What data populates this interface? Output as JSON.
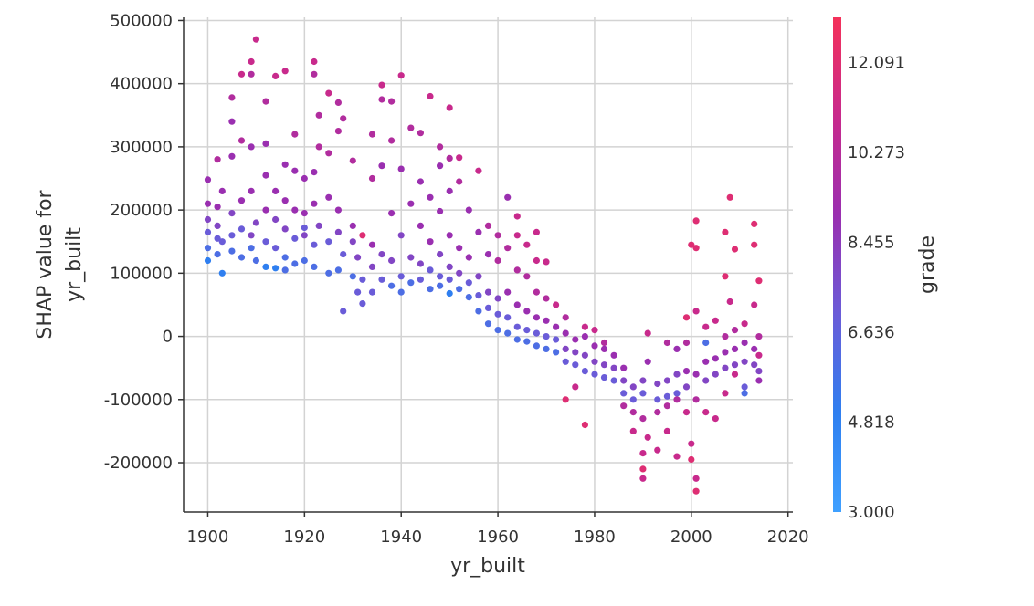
{
  "chart_data": {
    "type": "scatter",
    "title": "",
    "xlabel": "yr_built",
    "ylabel_lines": [
      "SHAP value for",
      "yr_built"
    ],
    "xlim": [
      1895,
      2021
    ],
    "ylim": [
      -278000,
      505000
    ],
    "x_ticks": [
      1900,
      1920,
      1940,
      1960,
      1980,
      2000,
      2020
    ],
    "y_ticks": [
      -200000,
      -100000,
      0,
      100000,
      200000,
      300000,
      400000,
      500000
    ],
    "grid": true,
    "colorbar": {
      "label": "grade",
      "min": 3.0,
      "max": 13.0,
      "tick_values": [
        3.0,
        4.818,
        6.636,
        8.455,
        10.273,
        12.091
      ],
      "tick_labels": [
        "3.000",
        "4.818",
        "6.636",
        "8.455",
        "10.273",
        "12.091"
      ],
      "colors": [
        "#3fa0ff",
        "#2f7ff0",
        "#6a5cd8",
        "#9a2fb0",
        "#c82a8c",
        "#f4315a"
      ]
    },
    "points": [
      [
        1900,
        120000,
        5
      ],
      [
        1900,
        140000,
        6
      ],
      [
        1900,
        165000,
        7
      ],
      [
        1900,
        185000,
        8
      ],
      [
        1900,
        210000,
        9
      ],
      [
        1900,
        248000,
        9
      ],
      [
        1902,
        130000,
        6
      ],
      [
        1902,
        155000,
        7
      ],
      [
        1902,
        175000,
        8
      ],
      [
        1902,
        205000,
        9
      ],
      [
        1902,
        280000,
        10
      ],
      [
        1903,
        100000,
        5
      ],
      [
        1903,
        150000,
        7
      ],
      [
        1903,
        230000,
        9
      ],
      [
        1905,
        135000,
        6
      ],
      [
        1905,
        160000,
        7
      ],
      [
        1905,
        195000,
        8
      ],
      [
        1905,
        285000,
        9
      ],
      [
        1905,
        378000,
        10
      ],
      [
        1905,
        340000,
        9
      ],
      [
        1907,
        125000,
        6
      ],
      [
        1907,
        170000,
        7
      ],
      [
        1907,
        215000,
        9
      ],
      [
        1907,
        310000,
        10
      ],
      [
        1907,
        415000,
        11
      ],
      [
        1909,
        140000,
        6
      ],
      [
        1909,
        160000,
        8
      ],
      [
        1909,
        230000,
        9
      ],
      [
        1909,
        300000,
        9
      ],
      [
        1909,
        435000,
        11
      ],
      [
        1909,
        415000,
        10
      ],
      [
        1910,
        470000,
        11
      ],
      [
        1910,
        180000,
        8
      ],
      [
        1910,
        120000,
        6
      ],
      [
        1912,
        110000,
        5
      ],
      [
        1912,
        150000,
        7
      ],
      [
        1912,
        200000,
        9
      ],
      [
        1912,
        255000,
        9
      ],
      [
        1912,
        372000,
        10
      ],
      [
        1912,
        305000,
        9
      ],
      [
        1914,
        108000,
        5
      ],
      [
        1914,
        140000,
        7
      ],
      [
        1914,
        185000,
        8
      ],
      [
        1914,
        230000,
        9
      ],
      [
        1914,
        412000,
        11
      ],
      [
        1916,
        105000,
        6
      ],
      [
        1916,
        125000,
        6
      ],
      [
        1916,
        170000,
        8
      ],
      [
        1916,
        215000,
        9
      ],
      [
        1916,
        272000,
        9
      ],
      [
        1916,
        420000,
        11
      ],
      [
        1918,
        115000,
        6
      ],
      [
        1918,
        155000,
        7
      ],
      [
        1918,
        200000,
        9
      ],
      [
        1918,
        320000,
        10
      ],
      [
        1918,
        262000,
        9
      ],
      [
        1920,
        120000,
        6
      ],
      [
        1920,
        160000,
        8
      ],
      [
        1920,
        195000,
        9
      ],
      [
        1920,
        250000,
        9
      ],
      [
        1920,
        172000,
        7
      ],
      [
        1922,
        110000,
        6
      ],
      [
        1922,
        145000,
        7
      ],
      [
        1922,
        210000,
        9
      ],
      [
        1922,
        260000,
        9
      ],
      [
        1922,
        435000,
        11
      ],
      [
        1922,
        415000,
        10
      ],
      [
        1923,
        350000,
        10
      ],
      [
        1923,
        300000,
        10
      ],
      [
        1923,
        175000,
        8
      ],
      [
        1925,
        100000,
        6
      ],
      [
        1925,
        150000,
        7
      ],
      [
        1925,
        220000,
        9
      ],
      [
        1925,
        290000,
        10
      ],
      [
        1925,
        385000,
        11
      ],
      [
        1927,
        105000,
        6
      ],
      [
        1927,
        165000,
        8
      ],
      [
        1927,
        200000,
        9
      ],
      [
        1927,
        370000,
        10
      ],
      [
        1927,
        325000,
        10
      ],
      [
        1928,
        40000,
        7
      ],
      [
        1928,
        130000,
        7
      ],
      [
        1928,
        345000,
        10
      ],
      [
        1930,
        95000,
        6
      ],
      [
        1930,
        150000,
        8
      ],
      [
        1930,
        175000,
        9
      ],
      [
        1930,
        278000,
        10
      ],
      [
        1931,
        70000,
        7
      ],
      [
        1931,
        125000,
        8
      ],
      [
        1932,
        52000,
        7
      ],
      [
        1932,
        160000,
        12
      ],
      [
        1932,
        90000,
        7
      ],
      [
        1934,
        70000,
        7
      ],
      [
        1934,
        110000,
        8
      ],
      [
        1934,
        145000,
        9
      ],
      [
        1934,
        250000,
        10
      ],
      [
        1934,
        320000,
        10
      ],
      [
        1936,
        90000,
        7
      ],
      [
        1936,
        130000,
        8
      ],
      [
        1936,
        270000,
        9
      ],
      [
        1936,
        398000,
        11
      ],
      [
        1936,
        375000,
        10
      ],
      [
        1938,
        80000,
        6
      ],
      [
        1938,
        120000,
        8
      ],
      [
        1938,
        195000,
        9
      ],
      [
        1938,
        310000,
        10
      ],
      [
        1938,
        372000,
        10
      ],
      [
        1940,
        413000,
        11
      ],
      [
        1940,
        265000,
        9
      ],
      [
        1940,
        160000,
        8
      ],
      [
        1940,
        95000,
        7
      ],
      [
        1940,
        70000,
        6
      ],
      [
        1942,
        85000,
        6
      ],
      [
        1942,
        125000,
        8
      ],
      [
        1942,
        210000,
        9
      ],
      [
        1942,
        330000,
        10
      ],
      [
        1944,
        90000,
        7
      ],
      [
        1944,
        115000,
        8
      ],
      [
        1944,
        175000,
        9
      ],
      [
        1944,
        245000,
        9
      ],
      [
        1944,
        322000,
        10
      ],
      [
        1946,
        75000,
        6
      ],
      [
        1946,
        105000,
        7
      ],
      [
        1946,
        150000,
        9
      ],
      [
        1946,
        220000,
        9
      ],
      [
        1946,
        380000,
        11
      ],
      [
        1948,
        80000,
        6
      ],
      [
        1948,
        95000,
        7
      ],
      [
        1948,
        130000,
        8
      ],
      [
        1948,
        198000,
        9
      ],
      [
        1948,
        270000,
        9
      ],
      [
        1948,
        300000,
        10
      ],
      [
        1950,
        68000,
        5
      ],
      [
        1950,
        90000,
        7
      ],
      [
        1950,
        110000,
        8
      ],
      [
        1950,
        160000,
        9
      ],
      [
        1950,
        230000,
        9
      ],
      [
        1950,
        282000,
        10
      ],
      [
        1950,
        362000,
        11
      ],
      [
        1952,
        75000,
        6
      ],
      [
        1952,
        100000,
        8
      ],
      [
        1952,
        140000,
        9
      ],
      [
        1952,
        245000,
        10
      ],
      [
        1952,
        283000,
        11
      ],
      [
        1954,
        62000,
        6
      ],
      [
        1954,
        85000,
        7
      ],
      [
        1954,
        125000,
        9
      ],
      [
        1954,
        200000,
        9
      ],
      [
        1956,
        40000,
        6
      ],
      [
        1956,
        65000,
        7
      ],
      [
        1956,
        95000,
        8
      ],
      [
        1956,
        165000,
        9
      ],
      [
        1956,
        262000,
        11
      ],
      [
        1958,
        20000,
        6
      ],
      [
        1958,
        45000,
        7
      ],
      [
        1958,
        70000,
        8
      ],
      [
        1958,
        130000,
        9
      ],
      [
        1958,
        175000,
        10
      ],
      [
        1960,
        10000,
        6
      ],
      [
        1960,
        35000,
        7
      ],
      [
        1960,
        60000,
        8
      ],
      [
        1960,
        120000,
        10
      ],
      [
        1960,
        160000,
        10
      ],
      [
        1962,
        5000,
        6
      ],
      [
        1962,
        30000,
        7
      ],
      [
        1962,
        70000,
        9
      ],
      [
        1962,
        140000,
        10
      ],
      [
        1962,
        220000,
        9
      ],
      [
        1964,
        -5000,
        6
      ],
      [
        1964,
        15000,
        7
      ],
      [
        1964,
        50000,
        9
      ],
      [
        1964,
        105000,
        10
      ],
      [
        1964,
        160000,
        11
      ],
      [
        1964,
        190000,
        11
      ],
      [
        1966,
        -8000,
        6
      ],
      [
        1966,
        10000,
        7
      ],
      [
        1966,
        40000,
        9
      ],
      [
        1966,
        95000,
        10
      ],
      [
        1966,
        145000,
        11
      ],
      [
        1968,
        -15000,
        6
      ],
      [
        1968,
        5000,
        7
      ],
      [
        1968,
        30000,
        9
      ],
      [
        1968,
        70000,
        10
      ],
      [
        1968,
        120000,
        11
      ],
      [
        1968,
        165000,
        11
      ],
      [
        1970,
        -20000,
        6
      ],
      [
        1970,
        0,
        7
      ],
      [
        1970,
        25000,
        9
      ],
      [
        1970,
        60000,
        10
      ],
      [
        1970,
        118000,
        11
      ],
      [
        1972,
        -25000,
        6
      ],
      [
        1972,
        -5000,
        7
      ],
      [
        1972,
        15000,
        9
      ],
      [
        1972,
        50000,
        11
      ],
      [
        1974,
        -40000,
        7
      ],
      [
        1974,
        -20000,
        8
      ],
      [
        1974,
        5000,
        9
      ],
      [
        1974,
        30000,
        10
      ],
      [
        1974,
        -100000,
        12
      ],
      [
        1976,
        -45000,
        7
      ],
      [
        1976,
        -25000,
        8
      ],
      [
        1976,
        -5000,
        9
      ],
      [
        1976,
        -80000,
        11
      ],
      [
        1978,
        -55000,
        7
      ],
      [
        1978,
        -30000,
        8
      ],
      [
        1978,
        0,
        9
      ],
      [
        1978,
        15000,
        11
      ],
      [
        1978,
        -140000,
        12
      ],
      [
        1980,
        -60000,
        7
      ],
      [
        1980,
        -40000,
        8
      ],
      [
        1980,
        -15000,
        9
      ],
      [
        1980,
        10000,
        11
      ],
      [
        1982,
        -65000,
        7
      ],
      [
        1982,
        -45000,
        8
      ],
      [
        1982,
        -20000,
        9
      ],
      [
        1982,
        -10000,
        10
      ],
      [
        1984,
        -70000,
        7
      ],
      [
        1984,
        -50000,
        8
      ],
      [
        1984,
        -30000,
        9
      ],
      [
        1986,
        -90000,
        7
      ],
      [
        1986,
        -70000,
        8
      ],
      [
        1986,
        -50000,
        9
      ],
      [
        1986,
        -110000,
        10
      ],
      [
        1988,
        -100000,
        7
      ],
      [
        1988,
        -80000,
        8
      ],
      [
        1988,
        -120000,
        10
      ],
      [
        1988,
        -150000,
        11
      ],
      [
        1990,
        -90000,
        7
      ],
      [
        1990,
        -70000,
        8
      ],
      [
        1990,
        -130000,
        10
      ],
      [
        1990,
        -210000,
        12
      ],
      [
        1990,
        -225000,
        11
      ],
      [
        1990,
        -185000,
        11
      ],
      [
        1991,
        5000,
        11
      ],
      [
        1991,
        -40000,
        9
      ],
      [
        1991,
        -160000,
        11
      ],
      [
        1993,
        -100000,
        7
      ],
      [
        1993,
        -75000,
        8
      ],
      [
        1993,
        -120000,
        10
      ],
      [
        1993,
        -180000,
        11
      ],
      [
        1995,
        -95000,
        7
      ],
      [
        1995,
        -70000,
        8
      ],
      [
        1995,
        -110000,
        10
      ],
      [
        1995,
        -150000,
        11
      ],
      [
        1995,
        -10000,
        10
      ],
      [
        1997,
        -90000,
        7
      ],
      [
        1997,
        -60000,
        8
      ],
      [
        1997,
        -100000,
        10
      ],
      [
        1997,
        -190000,
        11
      ],
      [
        1997,
        -20000,
        9
      ],
      [
        1999,
        -80000,
        8
      ],
      [
        1999,
        -55000,
        9
      ],
      [
        1999,
        -120000,
        11
      ],
      [
        1999,
        30000,
        12
      ],
      [
        1999,
        -10000,
        10
      ],
      [
        2000,
        145000,
        12
      ],
      [
        2000,
        -170000,
        11
      ],
      [
        2000,
        -195000,
        12
      ],
      [
        2001,
        183000,
        12
      ],
      [
        2001,
        140000,
        12
      ],
      [
        2001,
        -245000,
        12
      ],
      [
        2001,
        -225000,
        11
      ],
      [
        2001,
        -100000,
        10
      ],
      [
        2001,
        -60000,
        9
      ],
      [
        2001,
        40000,
        11
      ],
      [
        2003,
        -70000,
        8
      ],
      [
        2003,
        -40000,
        9
      ],
      [
        2003,
        -120000,
        11
      ],
      [
        2003,
        15000,
        11
      ],
      [
        2003,
        -10000,
        6
      ],
      [
        2005,
        -60000,
        8
      ],
      [
        2005,
        -35000,
        9
      ],
      [
        2005,
        -130000,
        11
      ],
      [
        2005,
        25000,
        11
      ],
      [
        2007,
        -50000,
        8
      ],
      [
        2007,
        -25000,
        9
      ],
      [
        2007,
        0,
        10
      ],
      [
        2007,
        165000,
        12
      ],
      [
        2007,
        95000,
        12
      ],
      [
        2007,
        -90000,
        11
      ],
      [
        2008,
        220000,
        12
      ],
      [
        2008,
        55000,
        11
      ],
      [
        2009,
        -45000,
        8
      ],
      [
        2009,
        -20000,
        9
      ],
      [
        2009,
        10000,
        10
      ],
      [
        2009,
        138000,
        12
      ],
      [
        2009,
        -60000,
        11
      ],
      [
        2011,
        -40000,
        8
      ],
      [
        2011,
        -10000,
        9
      ],
      [
        2011,
        20000,
        11
      ],
      [
        2011,
        -80000,
        7
      ],
      [
        2011,
        -90000,
        6
      ],
      [
        2013,
        -45000,
        8
      ],
      [
        2013,
        -20000,
        9
      ],
      [
        2013,
        50000,
        11
      ],
      [
        2013,
        178000,
        12
      ],
      [
        2013,
        145000,
        12
      ],
      [
        2014,
        -55000,
        8
      ],
      [
        2014,
        -70000,
        9
      ],
      [
        2014,
        0,
        10
      ],
      [
        2014,
        88000,
        12
      ],
      [
        2014,
        -30000,
        11
      ]
    ]
  }
}
